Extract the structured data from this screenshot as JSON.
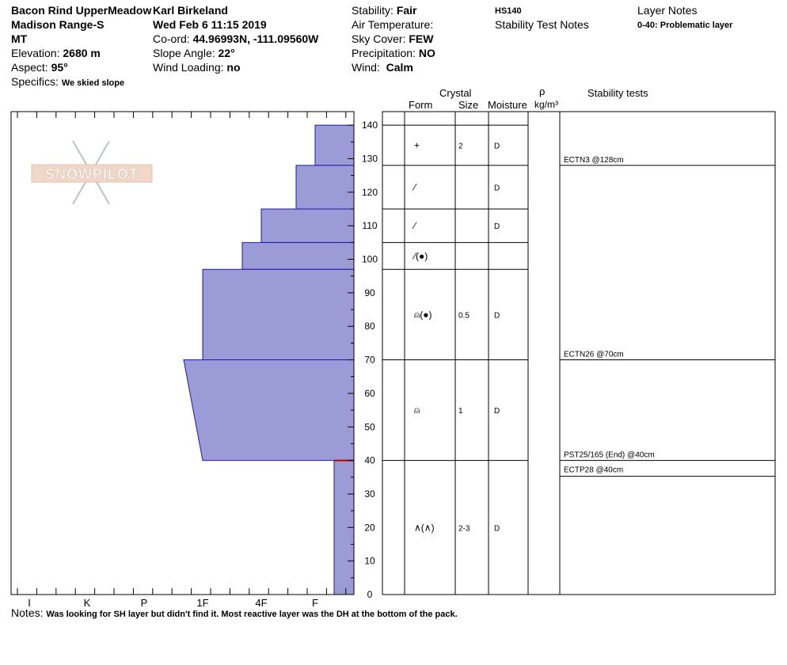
{
  "header": {
    "location": "Bacon Rind UpperMeadow",
    "range": "Madison Range-S",
    "state": "MT",
    "elevation_label": "Elevation:",
    "elevation": "2680 m",
    "aspect_label": "Aspect:",
    "aspect": "95°",
    "specifics_label": "Specifics:",
    "specifics": "We skied slope",
    "observer": "Karl Birkeland",
    "datetime": "Wed Feb 6 11:15 2019",
    "coord_label": "Co-ord:",
    "coord": "44.96993N, -111.09560W",
    "slope_label": "Slope Angle:",
    "slope": "22°",
    "wind_loading_label": "Wind Loading:",
    "wind_loading": "no",
    "stability_label": "Stability:",
    "stability": "Fair",
    "air_temp_label": "Air Temperature:",
    "sky_label": "Sky Cover:",
    "sky": "FEW",
    "precip_label": "Precipitation:",
    "precip": "NO",
    "wind_label": "Wind:",
    "wind": "Calm",
    "hs": "HS140",
    "stability_notes_label": "Stability Test Notes",
    "layer_notes_label": "Layer Notes",
    "layer_note": "0-40: Problematic layer"
  },
  "logo_text": "SNOWPILOT",
  "columns": {
    "crystal": "Crystal",
    "form": "Form",
    "size": "Size",
    "moisture": "Moisture",
    "rho": "ρ",
    "density_unit": "kg/m³",
    "stability_tests": "Stability tests"
  },
  "notes_label": "Notes:",
  "notes": "Was looking for SH layer but didn't find it.  Most reactive layer was the DH at the bottom of the pack.",
  "colors": {
    "layer_fill": "#9b9bd7",
    "layer_edge": "#1a1aa8",
    "weak_layer": "#c00000"
  },
  "chart_data": {
    "type": "area",
    "title": "",
    "xlabel": "Hand hardness",
    "ylabel": "Height (cm)",
    "hardness_ticks": [
      "I",
      "K",
      "P",
      "1F",
      "4F",
      "F"
    ],
    "y_ticks": [
      0,
      10,
      20,
      30,
      40,
      50,
      60,
      70,
      80,
      90,
      100,
      110,
      120,
      130,
      140
    ],
    "ylim": [
      0,
      140
    ],
    "layers": [
      {
        "bottom": 128,
        "top": 140,
        "hardness_bottom": "F",
        "hardness_top": "F"
      },
      {
        "bottom": 115,
        "top": 128,
        "hardness_bottom": "F+",
        "hardness_top": "F+"
      },
      {
        "bottom": 105,
        "top": 115,
        "hardness_bottom": "4F",
        "hardness_top": "4F"
      },
      {
        "bottom": 97,
        "top": 105,
        "hardness_bottom": "4F+",
        "hardness_top": "4F+"
      },
      {
        "bottom": 70,
        "top": 97,
        "hardness_bottom": "1F",
        "hardness_top": "1F"
      },
      {
        "bottom": 40,
        "top": 70,
        "hardness_bottom": "1F",
        "hardness_top": "1F+"
      },
      {
        "bottom": 0,
        "top": 40,
        "hardness_bottom": "F-",
        "hardness_top": "F-"
      }
    ],
    "weak_layer_height": 40,
    "crystal_rows": [
      {
        "top": 140,
        "bottom": 128,
        "form": "+",
        "size": "2",
        "moisture": "D"
      },
      {
        "top": 128,
        "bottom": 115,
        "form": "⁄",
        "size": "",
        "moisture": "D"
      },
      {
        "top": 115,
        "bottom": 105,
        "form": "⁄",
        "size": "",
        "moisture": "D"
      },
      {
        "top": 105,
        "bottom": 97,
        "form": "⁄(●)",
        "size": "",
        "moisture": ""
      },
      {
        "top": 97,
        "bottom": 70,
        "form": "⍝(●)",
        "size": "0.5",
        "moisture": "D"
      },
      {
        "top": 70,
        "bottom": 40,
        "form": "⍝",
        "size": "1",
        "moisture": "D"
      },
      {
        "top": 40,
        "bottom": 0,
        "form": "∧(∧)",
        "size": "2-3",
        "moisture": "D"
      }
    ],
    "stability_tests": [
      {
        "label": "ECTN3 @128cm",
        "height": 128
      },
      {
        "label": "ECTN26 @70cm",
        "height": 70
      },
      {
        "label": "PST25/165 (End) @40cm",
        "height": 40
      },
      {
        "label": "ECTP28 @40cm",
        "height": 40
      }
    ]
  }
}
